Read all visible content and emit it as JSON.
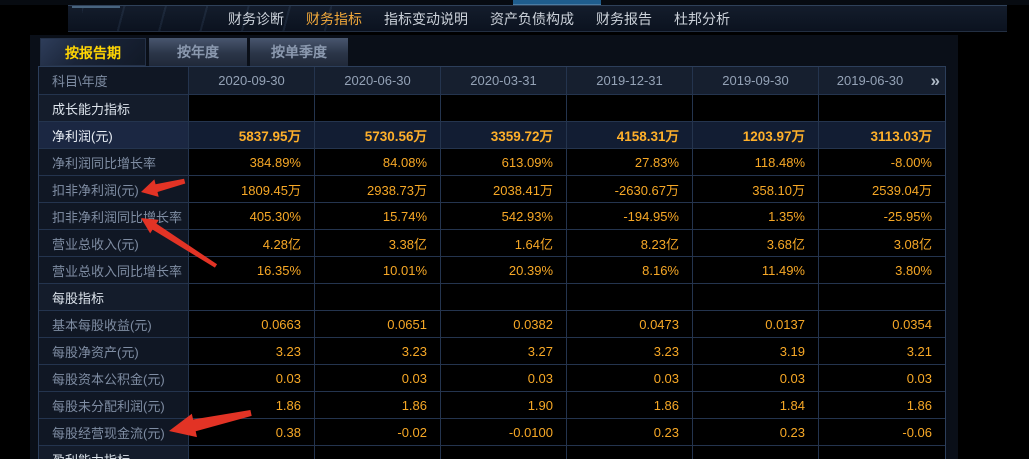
{
  "theme": {
    "bg_black": "#000000",
    "panel_bg": "#0a0f18",
    "navbar_bg1": "#141d2c",
    "navbar_bg2": "#0b121f",
    "topstrip_blue": "#1f5d8d",
    "border_blue": "#24344e",
    "table_outer": "#2c3e5a",
    "header_bg": "#161f2f",
    "header_text": "#94a2b6",
    "section_label_bg": "#141c2b",
    "section_text": "#dde4ec",
    "label_bg": "#101724",
    "label_text": "#7f8da3",
    "value_orange": "#f7a826",
    "hl_row_bg": "#121d33",
    "hl_label_bg": "#1b2742",
    "hl_value": "#ffb02a",
    "nav_text": "#ccd2da",
    "nav_active": "#f2a93b",
    "tab_active_text": "#ffd503",
    "tab_text": "#8b99af",
    "arrow_red": "#e23325"
  },
  "navbar": {
    "items": [
      {
        "name": "financial-diagnosis",
        "label": "财务诊断",
        "active": false
      },
      {
        "name": "financial-indicators",
        "label": "财务指标",
        "active": true
      },
      {
        "name": "indicator-change-notes",
        "label": "指标变动说明",
        "active": false
      },
      {
        "name": "asset-liability-structure",
        "label": "资产负债构成",
        "active": false
      },
      {
        "name": "financial-report",
        "label": "财务报告",
        "active": false
      },
      {
        "name": "dupont-analysis",
        "label": "杜邦分析",
        "active": false
      }
    ]
  },
  "tabs": [
    {
      "name": "by-report-period",
      "label": "按报告期",
      "active": true
    },
    {
      "name": "by-year",
      "label": "按年度",
      "active": false
    },
    {
      "name": "by-single-quarter",
      "label": "按单季度",
      "active": false
    }
  ],
  "table": {
    "header": {
      "label_col": "科目\\年度",
      "periods": [
        "2020-09-30",
        "2020-06-30",
        "2020-03-31",
        "2019-12-31",
        "2019-09-30",
        "2019-06-30"
      ],
      "next_icon": "»"
    },
    "rows": [
      {
        "type": "section",
        "label": "成长能力指标",
        "values": [
          "",
          "",
          "",
          "",
          "",
          ""
        ]
      },
      {
        "type": "highlight",
        "label": "净利润(元)",
        "values": [
          "5837.95万",
          "5730.56万",
          "3359.72万",
          "4158.31万",
          "1203.97万",
          "3113.03万"
        ]
      },
      {
        "type": "data",
        "label": "净利润同比增长率",
        "values": [
          "384.89%",
          "84.08%",
          "613.09%",
          "27.83%",
          "118.48%",
          "-8.00%"
        ]
      },
      {
        "type": "data",
        "label": "扣非净利润(元)",
        "values": [
          "1809.45万",
          "2938.73万",
          "2038.41万",
          "-2630.67万",
          "358.10万",
          "2539.04万"
        ]
      },
      {
        "type": "data",
        "label": "扣非净利润同比增长率",
        "values": [
          "405.30%",
          "15.74%",
          "542.93%",
          "-194.95%",
          "1.35%",
          "-25.95%"
        ]
      },
      {
        "type": "data",
        "label": "营业总收入(元)",
        "values": [
          "4.28亿",
          "3.38亿",
          "1.64亿",
          "8.23亿",
          "3.68亿",
          "3.08亿"
        ]
      },
      {
        "type": "data",
        "label": "营业总收入同比增长率",
        "values": [
          "16.35%",
          "10.01%",
          "20.39%",
          "8.16%",
          "11.49%",
          "3.80%"
        ]
      },
      {
        "type": "section",
        "label": "每股指标",
        "values": [
          "",
          "",
          "",
          "",
          "",
          ""
        ]
      },
      {
        "type": "data",
        "label": "基本每股收益(元)",
        "values": [
          "0.0663",
          "0.0651",
          "0.0382",
          "0.0473",
          "0.0137",
          "0.0354"
        ]
      },
      {
        "type": "data",
        "label": "每股净资产(元)",
        "values": [
          "3.23",
          "3.23",
          "3.27",
          "3.23",
          "3.19",
          "3.21"
        ]
      },
      {
        "type": "data",
        "label": "每股资本公积金(元)",
        "values": [
          "0.03",
          "0.03",
          "0.03",
          "0.03",
          "0.03",
          "0.03"
        ]
      },
      {
        "type": "data",
        "label": "每股未分配利润(元)",
        "values": [
          "1.86",
          "1.86",
          "1.90",
          "1.86",
          "1.84",
          "1.86"
        ]
      },
      {
        "type": "data",
        "label": "每股经营现金流(元)",
        "values": [
          "0.38",
          "-0.02",
          "-0.0100",
          "0.23",
          "0.23",
          "-0.06"
        ]
      },
      {
        "type": "section",
        "label": "盈利能力指标",
        "values": [
          "",
          "",
          "",
          "",
          "",
          ""
        ]
      }
    ]
  },
  "annotations": {
    "arrow_color": "#e23325",
    "arrows": [
      {
        "points_to": "扣非净利润(元)"
      },
      {
        "points_to": "扣非净利润同比增长率"
      },
      {
        "points_to": "每股经营现金流(元)"
      }
    ]
  }
}
